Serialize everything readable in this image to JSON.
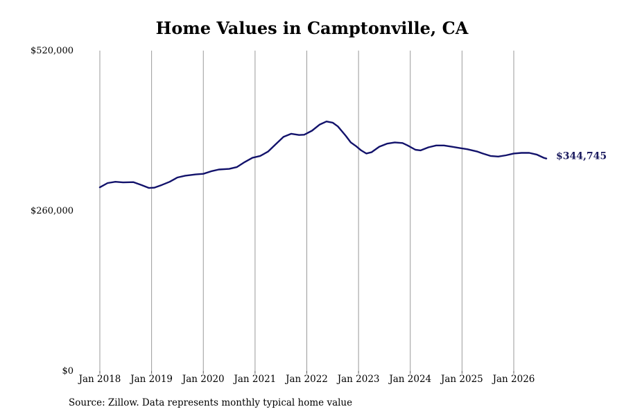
{
  "chart_data": {
    "type": "line",
    "title": "Home Values in Camptonville, CA",
    "xlabel": "",
    "ylabel": "",
    "ylim": [
      0,
      520000
    ],
    "yticks": [
      {
        "value": 0,
        "label": "$0"
      },
      {
        "value": 260000,
        "label": "$260,000"
      },
      {
        "value": 520000,
        "label": "$520,000"
      }
    ],
    "xticks": [
      {
        "value": 2018.0,
        "label": "Jan 2018"
      },
      {
        "value": 2019.0,
        "label": "Jan 2019"
      },
      {
        "value": 2020.0,
        "label": "Jan 2020"
      },
      {
        "value": 2021.0,
        "label": "Jan 2021"
      },
      {
        "value": 2022.0,
        "label": "Jan 2022"
      },
      {
        "value": 2023.0,
        "label": "Jan 2023"
      },
      {
        "value": 2024.0,
        "label": "Jan 2024"
      },
      {
        "value": 2025.0,
        "label": "Jan 2025"
      },
      {
        "value": 2026.0,
        "label": "Jan 2026"
      }
    ],
    "xlim": [
      2017.85,
      2026.72
    ],
    "grid": "vertical",
    "end_label": "$344,745",
    "colors": {
      "line": "#12126b",
      "grid": "#999999",
      "end_label": "#1a1a5e"
    },
    "series": [
      {
        "values": [
          [
            2018.0,
            298000
          ],
          [
            2018.15,
            305000
          ],
          [
            2018.3,
            307000
          ],
          [
            2018.45,
            306000
          ],
          [
            2018.65,
            306500
          ],
          [
            2018.8,
            302000
          ],
          [
            2018.95,
            297000
          ],
          [
            2019.05,
            297500
          ],
          [
            2019.2,
            302000
          ],
          [
            2019.35,
            307000
          ],
          [
            2019.5,
            314000
          ],
          [
            2019.65,
            317000
          ],
          [
            2019.85,
            319000
          ],
          [
            2020.0,
            320000
          ],
          [
            2020.15,
            324000
          ],
          [
            2020.3,
            327000
          ],
          [
            2020.5,
            328000
          ],
          [
            2020.65,
            331000
          ],
          [
            2020.8,
            339000
          ],
          [
            2020.95,
            346000
          ],
          [
            2021.1,
            349000
          ],
          [
            2021.25,
            356000
          ],
          [
            2021.4,
            368000
          ],
          [
            2021.55,
            380000
          ],
          [
            2021.7,
            385000
          ],
          [
            2021.85,
            383000
          ],
          [
            2021.95,
            383500
          ],
          [
            2022.1,
            390000
          ],
          [
            2022.25,
            400000
          ],
          [
            2022.38,
            405000
          ],
          [
            2022.5,
            403000
          ],
          [
            2022.6,
            397000
          ],
          [
            2022.75,
            382000
          ],
          [
            2022.85,
            371000
          ],
          [
            2022.95,
            365000
          ],
          [
            2023.05,
            358000
          ],
          [
            2023.15,
            353000
          ],
          [
            2023.25,
            355000
          ],
          [
            2023.4,
            364000
          ],
          [
            2023.55,
            369000
          ],
          [
            2023.7,
            371000
          ],
          [
            2023.85,
            370000
          ],
          [
            2023.95,
            366000
          ],
          [
            2024.1,
            359000
          ],
          [
            2024.2,
            358000
          ],
          [
            2024.35,
            363000
          ],
          [
            2024.5,
            366000
          ],
          [
            2024.65,
            366000
          ],
          [
            2024.8,
            364000
          ],
          [
            2024.95,
            362000
          ],
          [
            2025.1,
            360000
          ],
          [
            2025.3,
            356000
          ],
          [
            2025.4,
            353000
          ],
          [
            2025.55,
            349000
          ],
          [
            2025.7,
            348000
          ],
          [
            2025.85,
            350000
          ],
          [
            2026.0,
            353000
          ],
          [
            2026.15,
            354000
          ],
          [
            2026.3,
            354000
          ],
          [
            2026.45,
            351000
          ],
          [
            2026.58,
            346000
          ],
          [
            2026.63,
            344745
          ]
        ]
      }
    ]
  },
  "source_note": "Source: Zillow. Data represents monthly typical home value"
}
